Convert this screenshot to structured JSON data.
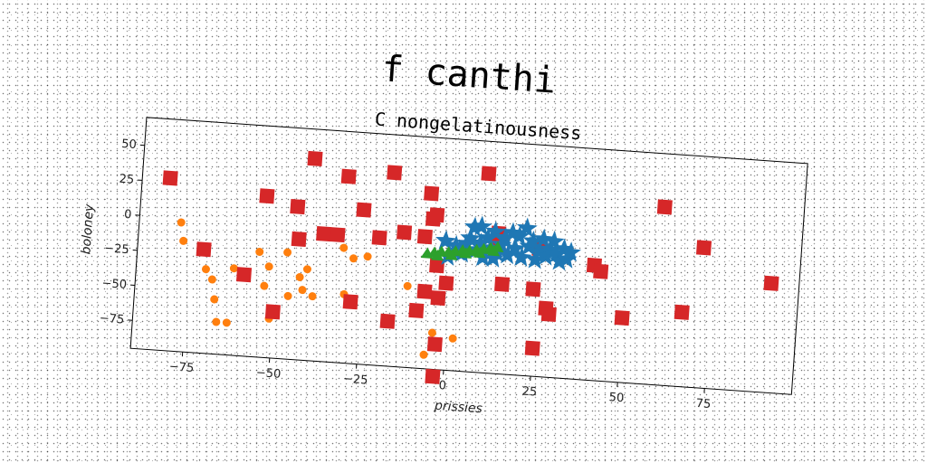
{
  "chart_data": {
    "type": "scatter",
    "title": "f canthi",
    "subtitle": "C nongelatinousness",
    "xlabel": "prissies",
    "ylabel": "boloney",
    "xlim": [
      -90,
      100
    ],
    "ylim": [
      -95,
      70
    ],
    "x_ticks": [
      "−75",
      "−50",
      "−25",
      "0",
      "25",
      "50",
      "75"
    ],
    "x_tick_values": [
      -75,
      -50,
      -25,
      0,
      25,
      50,
      75
    ],
    "y_ticks": [
      "50",
      "25",
      "0",
      "−25",
      "−50",
      "−75"
    ],
    "y_tick_values": [
      50,
      25,
      0,
      -25,
      -50,
      -75
    ],
    "grid": false,
    "series": [
      {
        "marker": "circle",
        "color": "#ff7f0e",
        "points": [
          [
            -78,
            -3
          ],
          [
            -77,
            -16
          ],
          [
            -70,
            -35
          ],
          [
            -68,
            -42
          ],
          [
            -67,
            -56
          ],
          [
            -66,
            -72
          ],
          [
            -63,
            -72
          ],
          [
            -62,
            -33
          ],
          [
            -55,
            -20
          ],
          [
            -53,
            -44
          ],
          [
            -52,
            -30
          ],
          [
            -51,
            -67
          ],
          [
            -47,
            -19
          ],
          [
            -46,
            -50
          ],
          [
            -43,
            -36
          ],
          [
            -42,
            -45
          ],
          [
            -41,
            -30
          ],
          [
            -39,
            -49
          ],
          [
            -31,
            -13
          ],
          [
            -30,
            -46
          ],
          [
            -28,
            -20
          ],
          [
            -24,
            -18
          ],
          [
            -12,
            -37
          ],
          [
            -9,
            -52
          ],
          [
            -6,
            -85
          ],
          [
            -4,
            -69
          ],
          [
            2,
            -72
          ]
        ]
      },
      {
        "marker": "square",
        "color": "#d62728",
        "points": [
          [
            -82,
            28
          ],
          [
            -71,
            -21
          ],
          [
            -59,
            -37
          ],
          [
            -54,
            20
          ],
          [
            -50,
            -62
          ],
          [
            -45,
            14
          ],
          [
            -44,
            -9
          ],
          [
            -41,
            49
          ],
          [
            -37,
            -4
          ],
          [
            -33,
            -4
          ],
          [
            -31,
            38
          ],
          [
            -28,
            -51
          ],
          [
            -26,
            15
          ],
          [
            -21,
            -4
          ],
          [
            -18,
            43
          ],
          [
            -17,
            -63
          ],
          [
            -14,
            1
          ],
          [
            -9,
            -54
          ],
          [
            -8,
            -1
          ],
          [
            -7,
            30
          ],
          [
            -7,
            -40
          ],
          [
            -6,
            12
          ],
          [
            -5,
            15
          ],
          [
            -4,
            -21
          ],
          [
            -3,
            -44
          ],
          [
            -3,
            -77
          ],
          [
            -3,
            -100
          ],
          [
            -1,
            -33
          ],
          [
            9,
            47
          ],
          [
            13,
            1
          ],
          [
            13,
            5
          ],
          [
            15,
            -31
          ],
          [
            24,
            -33
          ],
          [
            25,
            -4
          ],
          [
            25,
            -75
          ],
          [
            28,
            -46
          ],
          [
            29,
            -50
          ],
          [
            41,
            -13
          ],
          [
            43,
            -17
          ],
          [
            50,
            -49
          ],
          [
            60,
            32
          ],
          [
            67,
            -42
          ],
          [
            72,
            5
          ],
          [
            92,
            -17
          ]
        ]
      },
      {
        "marker": "star",
        "color": "#1f77b4",
        "points": [
          [
            -2,
            -3
          ],
          [
            1,
            -6
          ],
          [
            3,
            -11
          ],
          [
            4,
            -4
          ],
          [
            5,
            0
          ],
          [
            6,
            8
          ],
          [
            7,
            -8
          ],
          [
            8,
            -3
          ],
          [
            9,
            -13
          ],
          [
            10,
            1
          ],
          [
            11,
            -6
          ],
          [
            12,
            6
          ],
          [
            13,
            -9
          ],
          [
            14,
            -3
          ],
          [
            15,
            2
          ],
          [
            16,
            -10
          ],
          [
            17,
            6
          ],
          [
            18,
            -5
          ],
          [
            19,
            4
          ],
          [
            20,
            -11
          ],
          [
            21,
            10
          ],
          [
            22,
            -3
          ],
          [
            23,
            1
          ],
          [
            24,
            -12
          ],
          [
            25,
            -6
          ],
          [
            26,
            3
          ],
          [
            27,
            -9
          ],
          [
            28,
            -4
          ],
          [
            29,
            2
          ],
          [
            30,
            -7
          ],
          [
            31,
            -12
          ],
          [
            32,
            -3
          ],
          [
            33,
            -10
          ],
          [
            34,
            -5
          ],
          [
            8,
            9
          ],
          [
            2,
            -10
          ],
          [
            -1,
            -14
          ],
          [
            12,
            -13
          ]
        ]
      },
      {
        "marker": "triangle",
        "color": "#2ca02c",
        "points": [
          [
            -7,
            -13
          ],
          [
            -5,
            -12
          ],
          [
            -3,
            -11
          ],
          [
            -1,
            -11
          ],
          [
            1,
            -10
          ],
          [
            3,
            -9
          ],
          [
            5,
            -9
          ],
          [
            7,
            -8
          ],
          [
            9,
            -7
          ],
          [
            11,
            -6
          ],
          [
            13,
            -5
          ],
          [
            -4,
            -14
          ],
          [
            0,
            -13
          ],
          [
            4,
            -11
          ],
          [
            8,
            -10
          ],
          [
            12,
            -8
          ]
        ]
      }
    ]
  }
}
